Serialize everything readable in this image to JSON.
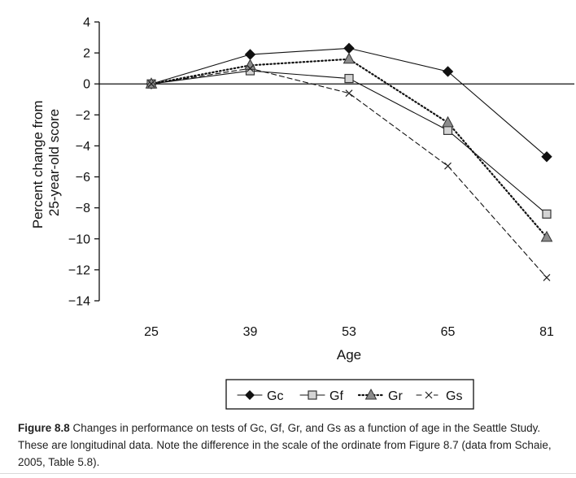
{
  "chart_data": {
    "type": "line",
    "title": "",
    "xlabel": "Age",
    "ylabel_lines": [
      "Percent change from",
      "25-year-old score"
    ],
    "categories": [
      "25",
      "39",
      "53",
      "65",
      "81"
    ],
    "ylim": [
      -14,
      4
    ],
    "yticks": [
      4,
      2,
      0,
      -2,
      -4,
      -6,
      -8,
      -10,
      -12,
      -14
    ],
    "ytick_labels": [
      "4",
      "2",
      "0",
      "−2",
      "−4",
      "−6",
      "−8",
      "−10",
      "−12",
      "−14"
    ],
    "grid": false,
    "legend_position": "bottom-center",
    "series": [
      {
        "name": "Gc",
        "marker": "diamond",
        "line": "solid",
        "values": [
          0,
          1.9,
          2.3,
          0.8,
          -4.7
        ]
      },
      {
        "name": "Gf",
        "marker": "square",
        "line": "solid",
        "values": [
          0,
          0.85,
          0.35,
          -3.0,
          -8.4
        ]
      },
      {
        "name": "Gr",
        "marker": "triangle",
        "line": "dotted",
        "values": [
          0,
          1.2,
          1.6,
          -2.5,
          -9.9
        ]
      },
      {
        "name": "Gs",
        "marker": "x",
        "line": "dashed",
        "values": [
          0,
          1.0,
          -0.6,
          -5.3,
          -12.5
        ]
      }
    ]
  },
  "caption": {
    "label": "Figure 8.8",
    "text": "Changes in performance on tests of Gc, Gf, Gr, and Gs as a function of age in the Seattle Study. These are longitudinal data. Note the difference in the scale of the ordinate from Figure 8.7 (data from Schaie, 2005, Table 5.8)."
  }
}
